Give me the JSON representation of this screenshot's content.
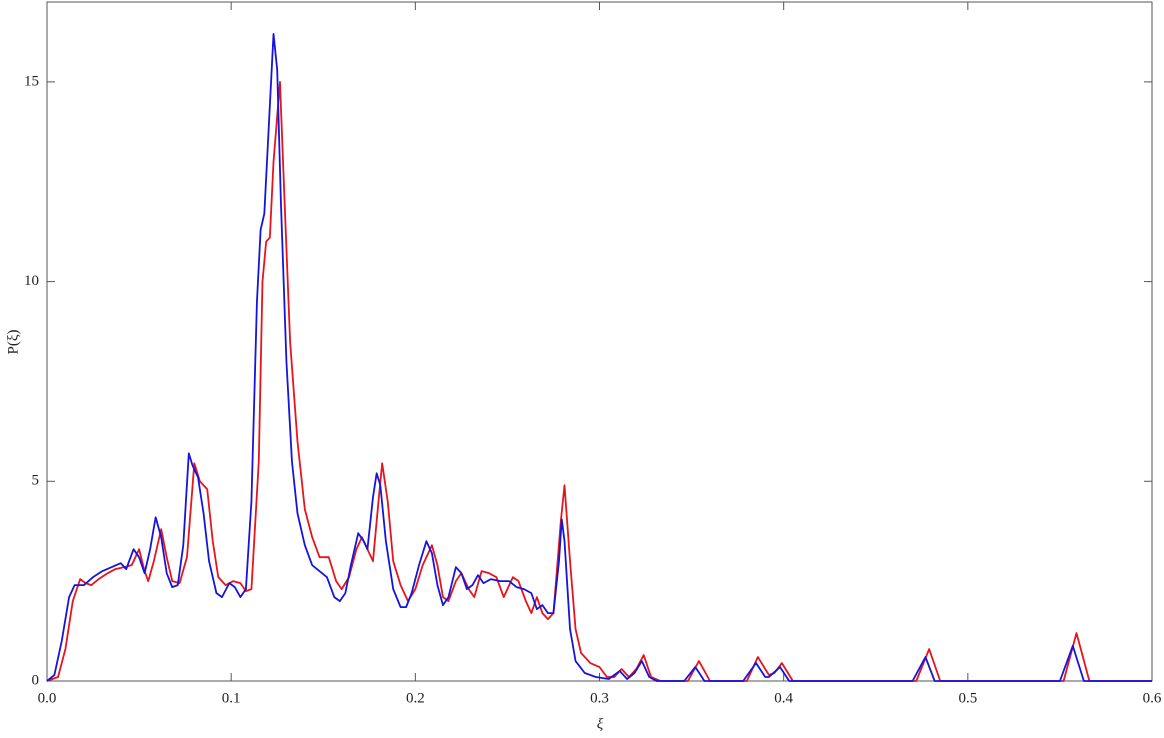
{
  "chart_data": {
    "type": "line",
    "xlabel": "ξ",
    "ylabel": "P(ξ)",
    "xlim": [
      0,
      0.6
    ],
    "ylim": [
      0,
      17
    ],
    "xticks": [
      {
        "value": 0,
        "label": "0.0"
      },
      0.1,
      0.2,
      0.3,
      0.4,
      0.5,
      0.6
    ],
    "yticks": [
      0,
      5,
      10,
      15
    ],
    "series": [
      {
        "color": "#e8141c",
        "x": [
          0,
          0.006,
          0.01,
          0.014,
          0.018,
          0.021,
          0.024,
          0.028,
          0.033,
          0.037,
          0.042,
          0.046,
          0.05,
          0.053,
          0.055,
          0.058,
          0.062,
          0.065,
          0.068,
          0.072,
          0.076,
          0.08,
          0.083,
          0.087,
          0.09,
          0.093,
          0.097,
          0.101,
          0.105,
          0.108,
          0.111,
          0.115,
          0.117,
          0.119,
          0.121,
          0.123,
          0.1265,
          0.129,
          0.132,
          0.136,
          0.14,
          0.144,
          0.148,
          0.153,
          0.157,
          0.16,
          0.164,
          0.168,
          0.171,
          0.174,
          0.177,
          0.18,
          0.182,
          0.185,
          0.188,
          0.192,
          0.196,
          0.2,
          0.204,
          0.209,
          0.212,
          0.215,
          0.218,
          0.222,
          0.225,
          0.229,
          0.232,
          0.236,
          0.24,
          0.244,
          0.248,
          0.253,
          0.256,
          0.26,
          0.263,
          0.266,
          0.269,
          0.272,
          0.275,
          0.279,
          0.281,
          0.284,
          0.287,
          0.29,
          0.295,
          0.3,
          0.304,
          0.308,
          0.312,
          0.316,
          0.32,
          0.324,
          0.328,
          0.333,
          0.348,
          0.354,
          0.36,
          0.38,
          0.386,
          0.392,
          0.395,
          0.399,
          0.405,
          0.472,
          0.479,
          0.485,
          0.552,
          0.559,
          0.566,
          0.6
        ],
        "values": [
          0,
          0.1,
          0.8,
          2.0,
          2.55,
          2.45,
          2.4,
          2.55,
          2.7,
          2.8,
          2.85,
          2.9,
          3.3,
          2.75,
          2.5,
          3.0,
          3.8,
          3.1,
          2.5,
          2.45,
          3.1,
          5.45,
          5.0,
          4.8,
          3.5,
          2.6,
          2.4,
          2.5,
          2.45,
          2.25,
          2.3,
          5.5,
          10.0,
          11.0,
          11.1,
          13.0,
          15.0,
          12.0,
          8.5,
          6.0,
          4.3,
          3.6,
          3.1,
          3.1,
          2.5,
          2.3,
          2.6,
          3.3,
          3.6,
          3.3,
          3.0,
          4.5,
          5.45,
          4.5,
          3.0,
          2.4,
          2.0,
          2.3,
          2.9,
          3.4,
          2.9,
          2.1,
          2.0,
          2.5,
          2.7,
          2.3,
          2.1,
          2.75,
          2.7,
          2.6,
          2.1,
          2.6,
          2.5,
          2.0,
          1.7,
          2.1,
          1.7,
          1.55,
          1.7,
          4.0,
          4.9,
          3.0,
          1.3,
          0.7,
          0.45,
          0.35,
          0.1,
          0.1,
          0.3,
          0.1,
          0.3,
          0.65,
          0.1,
          0,
          0,
          0.5,
          0,
          0,
          0.6,
          0.15,
          0.2,
          0.45,
          0,
          0,
          0.8,
          0,
          0,
          1.2,
          0,
          0
        ]
      },
      {
        "color": "#1414e0",
        "x": [
          0,
          0.004,
          0.008,
          0.012,
          0.015,
          0.02,
          0.025,
          0.03,
          0.035,
          0.04,
          0.043,
          0.047,
          0.05,
          0.053,
          0.056,
          0.059,
          0.062,
          0.065,
          0.068,
          0.071,
          0.074,
          0.077,
          0.079,
          0.082,
          0.085,
          0.088,
          0.092,
          0.095,
          0.099,
          0.102,
          0.105,
          0.108,
          0.111,
          0.114,
          0.116,
          0.118,
          0.12,
          0.123,
          0.125,
          0.127,
          0.13,
          0.133,
          0.136,
          0.14,
          0.144,
          0.148,
          0.152,
          0.156,
          0.159,
          0.162,
          0.165,
          0.169,
          0.172,
          0.174,
          0.177,
          0.179,
          0.181,
          0.184,
          0.188,
          0.192,
          0.195,
          0.198,
          0.202,
          0.206,
          0.209,
          0.212,
          0.215,
          0.218,
          0.222,
          0.225,
          0.228,
          0.231,
          0.234,
          0.237,
          0.241,
          0.246,
          0.251,
          0.255,
          0.259,
          0.263,
          0.266,
          0.269,
          0.272,
          0.275,
          0.278,
          0.2795,
          0.281,
          0.284,
          0.287,
          0.292,
          0.298,
          0.305,
          0.311,
          0.315,
          0.319,
          0.323,
          0.327,
          0.331,
          0.346,
          0.352,
          0.357,
          0.378,
          0.385,
          0.39,
          0.392,
          0.398,
          0.403,
          0.47,
          0.477,
          0.482,
          0.55,
          0.557,
          0.563,
          0.6
        ],
        "values": [
          0,
          0.15,
          1.0,
          2.1,
          2.4,
          2.4,
          2.6,
          2.75,
          2.85,
          2.95,
          2.8,
          3.3,
          3.1,
          2.7,
          3.3,
          4.1,
          3.6,
          2.7,
          2.35,
          2.4,
          3.4,
          5.7,
          5.4,
          5.1,
          4.2,
          3.0,
          2.2,
          2.1,
          2.45,
          2.35,
          2.1,
          2.3,
          4.5,
          9.5,
          11.3,
          11.7,
          13.5,
          16.2,
          15.3,
          12.0,
          8.0,
          5.5,
          4.2,
          3.4,
          2.9,
          2.75,
          2.6,
          2.1,
          2.0,
          2.2,
          2.9,
          3.7,
          3.5,
          3.3,
          4.6,
          5.2,
          4.9,
          3.5,
          2.3,
          1.85,
          1.85,
          2.2,
          2.9,
          3.5,
          3.2,
          2.4,
          1.9,
          2.1,
          2.85,
          2.7,
          2.3,
          2.4,
          2.65,
          2.45,
          2.55,
          2.5,
          2.5,
          2.35,
          2.3,
          2.2,
          1.8,
          1.9,
          1.7,
          1.7,
          3.0,
          4.05,
          3.5,
          1.3,
          0.5,
          0.2,
          0.1,
          0.05,
          0.25,
          0.05,
          0.2,
          0.5,
          0.1,
          0,
          0,
          0.35,
          0,
          0,
          0.45,
          0.1,
          0.1,
          0.35,
          0,
          0,
          0.6,
          0,
          0,
          0.88,
          0,
          0
        ]
      }
    ]
  }
}
